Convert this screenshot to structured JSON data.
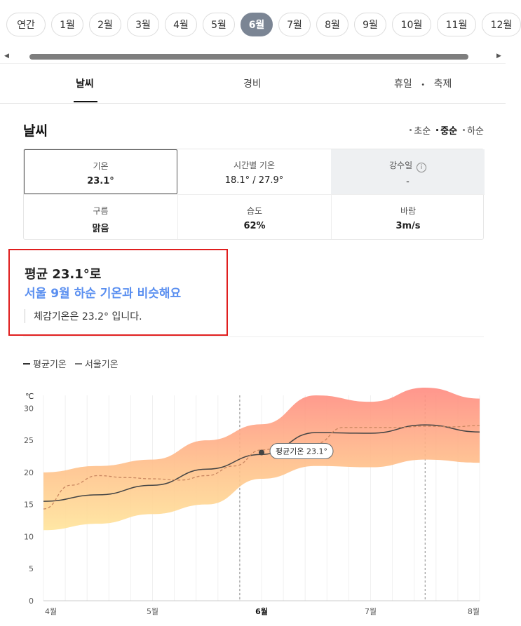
{
  "months": [
    {
      "label": "연간",
      "active": false
    },
    {
      "label": "1월",
      "active": false
    },
    {
      "label": "2월",
      "active": false
    },
    {
      "label": "3월",
      "active": false
    },
    {
      "label": "4월",
      "active": false
    },
    {
      "label": "5월",
      "active": false
    },
    {
      "label": "6월",
      "active": true
    },
    {
      "label": "7월",
      "active": false
    },
    {
      "label": "8월",
      "active": false
    },
    {
      "label": "9월",
      "active": false
    },
    {
      "label": "10월",
      "active": false
    },
    {
      "label": "11월",
      "active": false
    },
    {
      "label": "12월",
      "active": false
    }
  ],
  "tabs": {
    "weather": "날씨",
    "cost": "경비",
    "holiday": "휴일",
    "festival": "축제"
  },
  "section": {
    "title": "날씨"
  },
  "periods": {
    "early": "초순",
    "mid": "중순",
    "late": "하순",
    "active": "mid"
  },
  "stats": {
    "temp": {
      "label": "기온",
      "value": "23.1°"
    },
    "hourly": {
      "label": "시간별 기온",
      "value": "18.1° / 27.9°"
    },
    "rain": {
      "label": "강수일",
      "value": "-"
    },
    "cloud": {
      "label": "구름",
      "value": "맑음"
    },
    "humidity": {
      "label": "습도",
      "value": "62%"
    },
    "wind": {
      "label": "바람",
      "value": "3m/s"
    }
  },
  "summary": {
    "line1": "평균 23.1°로",
    "line2": "서울 9월 하순 기온과 비슷해요",
    "line3": "체감기온은 23.2° 입니다."
  },
  "legend": {
    "avg": "평균기온",
    "seoul": "서울기온"
  },
  "chart_data": {
    "type": "area",
    "ylabel": "℃",
    "ylim": [
      0,
      32
    ],
    "yticks": [
      0,
      5,
      10,
      15,
      20,
      25,
      30
    ],
    "xlabels": [
      {
        "label": "4월",
        "x": 0,
        "bold": false
      },
      {
        "label": "5월",
        "x": 1,
        "bold": false
      },
      {
        "label": "6월",
        "x": 2,
        "bold": true
      },
      {
        "label": "7월",
        "x": 3,
        "bold": false
      },
      {
        "label": "8월",
        "x": 4,
        "bold": false
      }
    ],
    "xrange": [
      0,
      4
    ],
    "vlines": [
      1.8,
      3.5
    ],
    "series": [
      {
        "name": "평균기온",
        "x": [
          0,
          0.5,
          1,
          1.5,
          2,
          2.5,
          3,
          3.5,
          4
        ],
        "values": [
          15.5,
          16.5,
          18,
          20.5,
          22.8,
          26.2,
          26.1,
          27.4,
          26.3
        ]
      },
      {
        "name": "서울기온",
        "x": [
          0,
          0.25,
          0.5,
          0.75,
          1,
          1.25,
          1.5,
          1.75,
          2,
          2.2,
          2.5,
          2.75,
          3,
          3.25,
          3.5,
          3.75,
          4
        ],
        "values": [
          14.3,
          18,
          19.5,
          19.2,
          19,
          18.8,
          19.5,
          21,
          23.5,
          24,
          24.5,
          27,
          27,
          27,
          27.2,
          27.1,
          27.3
        ]
      }
    ],
    "band": {
      "x": [
        0,
        0.5,
        1,
        1.5,
        2,
        2.5,
        3,
        3.5,
        4
      ],
      "low": [
        11,
        12,
        13.5,
        15,
        19,
        21,
        20.8,
        22,
        21.5
      ],
      "high": [
        20,
        21,
        22,
        25,
        27.5,
        32,
        31,
        33.2,
        31.5
      ]
    },
    "annotation": {
      "x": 2,
      "y": 23.1,
      "label": "평균기온 23.1°"
    }
  }
}
